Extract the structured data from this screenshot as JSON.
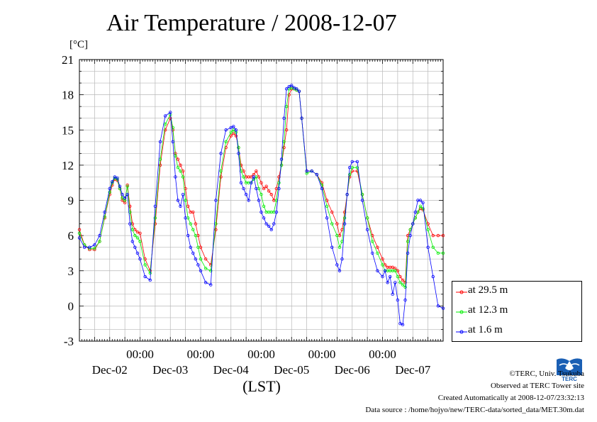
{
  "title": "Air Temperature / 2008-12-07",
  "unit_label": "[°C]",
  "x_axis_label": "(LST)",
  "legend": [
    {
      "label": "at 29.5 m",
      "color": "#ff0000"
    },
    {
      "label": "at 12.3 m",
      "color": "#00ee00"
    },
    {
      "label": "at 1.6 m",
      "color": "#0000ff"
    }
  ],
  "footer": {
    "copyright": "©TERC, Univ. Tsukuba",
    "site": "Observed at TERC Tower site",
    "created": "Created Automatically at 2008-12-07/23:32:13",
    "source": "Data source : /home/hojyo/new/TERC-data/sorted_data/MET.30m.dat"
  },
  "logo_text": "TERC",
  "chart_data": {
    "type": "line",
    "title": "Air Temperature / 2008-12-07",
    "ylabel": "[°C]",
    "xlabel": "(LST)",
    "ylim": [
      -3,
      21
    ],
    "yticks": [
      -3,
      0,
      3,
      6,
      9,
      12,
      15,
      18,
      21
    ],
    "xlim_hours": [
      0,
      144
    ],
    "x_unit": "hours from 2008-12-02 00:00 LST",
    "xticks": [
      {
        "hour": 24,
        "time": "00:00"
      },
      {
        "hour": 48,
        "time": "00:00"
      },
      {
        "hour": 72,
        "time": "00:00"
      },
      {
        "hour": 96,
        "time": "00:00"
      },
      {
        "hour": 120,
        "time": "00:00"
      }
    ],
    "day_labels": [
      {
        "hour": 12,
        "label": "Dec-02"
      },
      {
        "hour": 36,
        "label": "Dec-03"
      },
      {
        "hour": 60,
        "label": "Dec-04"
      },
      {
        "hour": 84,
        "label": "Dec-05"
      },
      {
        "hour": 108,
        "label": "Dec-06"
      },
      {
        "hour": 132,
        "label": "Dec-07"
      }
    ],
    "grid": true,
    "legend_position": "bottom-right outside",
    "series": [
      {
        "name": "at 29.5 m",
        "color": "#ff0000",
        "x": [
          0,
          2,
          4,
          6,
          8,
          10,
          12,
          13,
          14,
          15,
          16,
          17,
          18,
          19,
          20,
          21,
          22,
          23,
          24,
          26,
          28,
          30,
          32,
          34,
          36,
          37,
          38,
          39,
          40,
          41,
          42,
          43,
          44,
          45,
          46,
          47,
          48,
          50,
          52,
          54,
          56,
          58,
          60,
          61,
          62,
          63,
          64,
          65,
          66,
          67,
          68,
          69,
          70,
          71,
          72,
          73,
          74,
          75,
          76,
          77,
          78,
          79,
          80,
          81,
          82,
          83,
          84,
          85,
          86,
          87,
          88,
          90,
          92,
          94,
          96,
          98,
          100,
          102,
          103,
          104,
          105,
          106,
          107,
          108,
          110,
          112,
          114,
          116,
          118,
          120,
          121,
          122,
          123,
          124,
          125,
          126,
          127,
          128,
          129,
          130,
          131,
          132,
          133,
          134,
          135,
          136,
          138,
          140,
          142,
          144
        ],
        "values": [
          6.5,
          5.2,
          4.8,
          4.8,
          5.5,
          7.5,
          9.5,
          10.3,
          10.8,
          10.7,
          10.0,
          9.0,
          8.8,
          10.3,
          8.5,
          7.0,
          6.5,
          6.3,
          6.2,
          4.0,
          3.0,
          7.0,
          12.0,
          15.0,
          16.0,
          15.0,
          13.0,
          12.5,
          12.0,
          11.5,
          10.0,
          8.5,
          8.0,
          8.0,
          7.0,
          6.0,
          5.0,
          4.0,
          3.5,
          6.5,
          11.0,
          13.5,
          14.5,
          14.7,
          14.5,
          13.5,
          12.0,
          11.5,
          11.0,
          11.0,
          11.0,
          11.2,
          11.5,
          11.0,
          10.5,
          10.0,
          10.2,
          9.8,
          9.5,
          9.0,
          10.0,
          11.0,
          12.0,
          13.5,
          15.0,
          18.0,
          18.5,
          18.5,
          18.4,
          18.3,
          16.0,
          11.5,
          11.5,
          11.2,
          10.5,
          9.0,
          8.0,
          7.0,
          6.0,
          6.5,
          8.0,
          9.5,
          11.0,
          11.5,
          11.5,
          9.5,
          7.5,
          6.0,
          5.0,
          4.0,
          3.5,
          3.3,
          3.3,
          3.3,
          3.2,
          3.0,
          2.5,
          2.2,
          2.0,
          6.0,
          6.5,
          7.0,
          7.5,
          8.0,
          8.3,
          8.2,
          7.0,
          6.0,
          6.0,
          6.0
        ]
      },
      {
        "name": "at 12.3 m",
        "color": "#00ee00",
        "x": [
          0,
          2,
          4,
          6,
          8,
          10,
          12,
          13,
          14,
          15,
          16,
          17,
          18,
          19,
          20,
          21,
          22,
          23,
          24,
          26,
          28,
          30,
          32,
          34,
          36,
          37,
          38,
          39,
          40,
          41,
          42,
          43,
          44,
          45,
          46,
          47,
          48,
          50,
          52,
          54,
          56,
          58,
          60,
          61,
          62,
          63,
          64,
          65,
          66,
          67,
          68,
          69,
          70,
          71,
          72,
          73,
          74,
          75,
          76,
          77,
          78,
          79,
          80,
          81,
          82,
          83,
          84,
          85,
          86,
          87,
          88,
          90,
          92,
          94,
          96,
          98,
          100,
          102,
          103,
          104,
          105,
          106,
          107,
          108,
          110,
          112,
          114,
          116,
          118,
          120,
          121,
          122,
          123,
          124,
          125,
          126,
          127,
          128,
          129,
          130,
          131,
          132,
          133,
          134,
          135,
          136,
          138,
          140,
          142,
          144
        ],
        "values": [
          6.2,
          5.2,
          4.9,
          4.9,
          5.5,
          7.6,
          9.7,
          10.5,
          10.9,
          10.8,
          10.0,
          9.2,
          9.0,
          10.2,
          8.0,
          6.5,
          6.0,
          5.8,
          5.5,
          3.5,
          2.8,
          7.5,
          12.5,
          15.5,
          16.3,
          15.2,
          12.8,
          11.8,
          11.5,
          11.0,
          9.0,
          7.5,
          7.0,
          6.5,
          6.0,
          5.0,
          4.0,
          3.2,
          3.0,
          7.0,
          11.5,
          14.0,
          14.8,
          15.0,
          14.8,
          13.5,
          11.5,
          11.0,
          10.5,
          10.5,
          10.5,
          10.8,
          11.0,
          10.0,
          9.5,
          8.5,
          8.0,
          8.0,
          8.0,
          8.0,
          9.0,
          10.5,
          12.0,
          14.0,
          17.0,
          18.5,
          18.6,
          18.5,
          18.4,
          18.3,
          16.0,
          11.3,
          11.5,
          11.2,
          10.3,
          8.5,
          7.0,
          6.0,
          5.0,
          5.5,
          7.5,
          9.5,
          11.2,
          11.8,
          11.8,
          9.5,
          7.5,
          5.5,
          4.5,
          3.5,
          3.0,
          3.0,
          3.0,
          3.0,
          3.0,
          2.5,
          2.0,
          1.8,
          1.6,
          5.5,
          6.5,
          7.0,
          7.5,
          8.0,
          8.5,
          8.3,
          6.5,
          5.0,
          4.5,
          4.5
        ]
      },
      {
        "name": "at 1.6 m",
        "color": "#0000ff",
        "x": [
          0,
          2,
          4,
          6,
          8,
          10,
          12,
          13,
          14,
          15,
          16,
          17,
          18,
          19,
          20,
          21,
          22,
          23,
          24,
          26,
          28,
          30,
          32,
          34,
          36,
          37,
          38,
          39,
          40,
          41,
          42,
          43,
          44,
          45,
          46,
          47,
          48,
          50,
          52,
          54,
          56,
          58,
          60,
          61,
          62,
          63,
          64,
          65,
          66,
          67,
          68,
          69,
          70,
          71,
          72,
          73,
          74,
          75,
          76,
          77,
          78,
          79,
          80,
          81,
          82,
          83,
          84,
          85,
          86,
          87,
          88,
          90,
          92,
          94,
          96,
          98,
          100,
          102,
          103,
          104,
          105,
          106,
          107,
          108,
          110,
          112,
          114,
          116,
          118,
          120,
          121,
          122,
          123,
          124,
          125,
          126,
          127,
          128,
          129,
          130,
          131,
          132,
          133,
          134,
          135,
          136,
          138,
          140,
          142,
          144
        ],
        "values": [
          5.8,
          5.0,
          5.0,
          5.2,
          6.0,
          8.0,
          10.0,
          10.6,
          11.0,
          10.9,
          10.2,
          9.5,
          9.2,
          9.5,
          7.0,
          5.5,
          5.0,
          4.5,
          4.0,
          2.5,
          2.2,
          8.5,
          14.0,
          16.2,
          16.5,
          14.0,
          11.0,
          9.0,
          8.5,
          9.5,
          7.5,
          6.0,
          5.0,
          4.5,
          4.0,
          3.5,
          3.0,
          2.0,
          1.8,
          9.0,
          13.0,
          15.0,
          15.2,
          15.3,
          15.0,
          13.0,
          10.5,
          10.0,
          9.5,
          9.0,
          10.5,
          11.0,
          10.0,
          9.0,
          8.0,
          7.5,
          7.0,
          6.8,
          6.5,
          7.0,
          8.0,
          10.0,
          12.5,
          16.0,
          18.5,
          18.7,
          18.8,
          18.6,
          18.5,
          18.3,
          16.0,
          11.5,
          11.5,
          11.2,
          10.0,
          7.5,
          5.0,
          3.5,
          3.0,
          4.0,
          7.0,
          9.5,
          11.8,
          12.3,
          12.3,
          9.0,
          6.5,
          4.5,
          3.0,
          2.5,
          3.0,
          2.0,
          2.5,
          1.0,
          2.0,
          0.5,
          -1.5,
          -1.6,
          0.5,
          4.5,
          6.0,
          7.0,
          8.0,
          9.0,
          9.0,
          8.8,
          5.0,
          2.5,
          0.0,
          -0.2
        ]
      }
    ]
  }
}
